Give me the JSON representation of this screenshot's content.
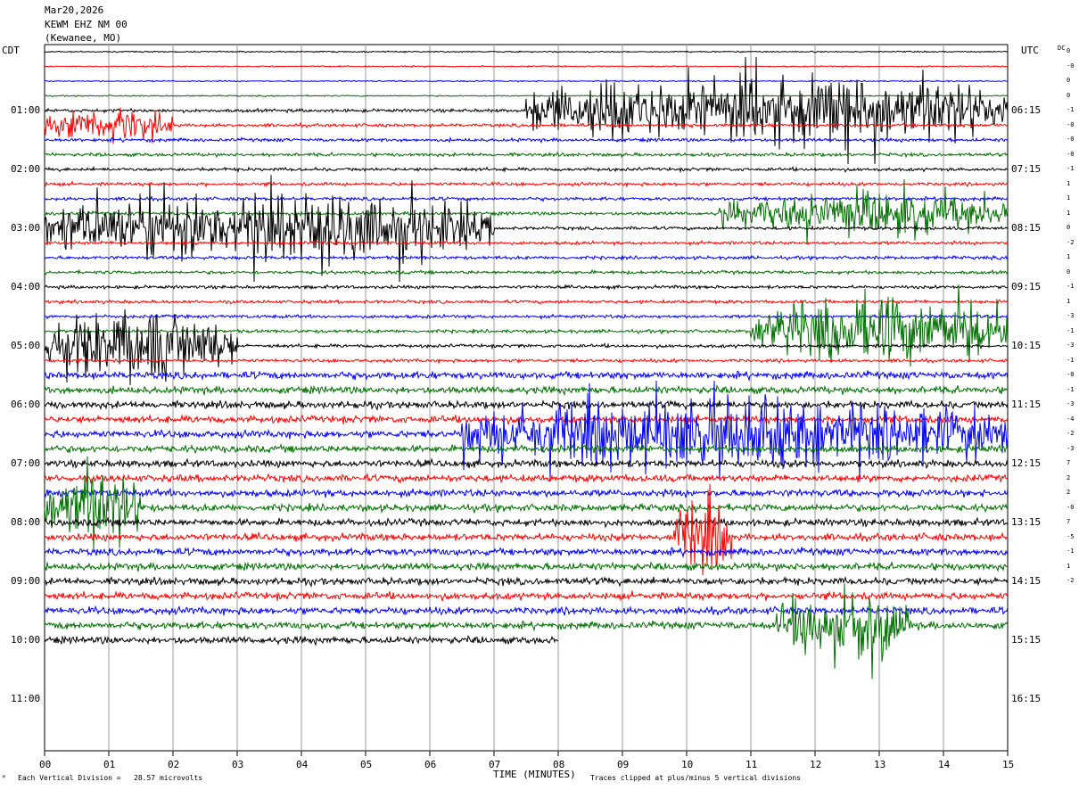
{
  "header": {
    "date": "Mar20,2026",
    "station": "KEWM EHZ NM 00",
    "location": "(Kewanee, MO)"
  },
  "tz_left": "CDT",
  "tz_right": "UTC",
  "dc_label": "DC",
  "footer": {
    "division": "Each Vertical Division =   28.57 microvolts",
    "clipped": "Traces clipped at plus/minus 5 vertical divisions",
    "corner": "ᴹ"
  },
  "chart_data": {
    "type": "line",
    "title": "Mar20,2026 KEWM EHZ NM 00 (Kewanee, MO)",
    "xlabel": "TIME (MINUTES)",
    "x_ticks": [
      "00",
      "01",
      "02",
      "03",
      "04",
      "05",
      "06",
      "07",
      "08",
      "09",
      "10",
      "11",
      "12",
      "13",
      "14",
      "15"
    ],
    "xlim": [
      0,
      15
    ],
    "left_time_labels": [
      "01:00",
      "02:00",
      "03:00",
      "04:00",
      "05:00",
      "06:00",
      "07:00",
      "08:00",
      "09:00",
      "10:00",
      "11:00"
    ],
    "right_time_labels": [
      "06:15",
      "07:15",
      "08:15",
      "09:15",
      "10:15",
      "11:15",
      "12:15",
      "13:15",
      "14:15",
      "15:15",
      "16:15"
    ],
    "trace_count": 41,
    "last_trace_end_minute": 8.0,
    "color_cycle": [
      "#000000",
      "#ff0000",
      "#0000ff",
      "#007000"
    ],
    "dc_offsets": [
      "0",
      "-0",
      "0",
      "0",
      "-1",
      "-0",
      "-0",
      "-0",
      "-1",
      "1",
      "1",
      "1",
      "0",
      "-2",
      "1",
      "0",
      "-1",
      "1",
      "-3",
      "-1",
      "-3",
      "-1",
      "-0",
      "-1",
      "-3",
      "-4",
      "-2",
      "-3",
      "7",
      "2",
      "2",
      "-0",
      "7",
      "-5",
      "-1",
      "1",
      "-2"
    ],
    "grid": true,
    "events": [
      {
        "trace": 4,
        "start": 7.5,
        "end": 15.0,
        "amp": 1.0
      },
      {
        "trace": 5,
        "start": 0.0,
        "end": 2.0,
        "amp": 0.35
      },
      {
        "trace": 12,
        "start": 0.0,
        "end": 7.0,
        "amp": 1.0
      },
      {
        "trace": 12,
        "start": 2.5,
        "end": 5.5,
        "amp": 1.0
      },
      {
        "trace": 11,
        "start": 10.5,
        "end": 15.0,
        "amp": 0.5
      },
      {
        "trace": 19,
        "start": 11.0,
        "end": 15.0,
        "amp": 1.0
      },
      {
        "trace": 20,
        "start": 0.0,
        "end": 3.0,
        "amp": 1.0
      },
      {
        "trace": 26,
        "start": 6.5,
        "end": 15.0,
        "amp": 1.0
      },
      {
        "trace": 31,
        "start": 0.0,
        "end": 1.5,
        "amp": 1.0
      },
      {
        "trace": 33,
        "start": 9.8,
        "end": 10.7,
        "amp": 1.0
      },
      {
        "trace": 39,
        "start": 11.4,
        "end": 13.5,
        "amp": 1.0
      }
    ]
  }
}
